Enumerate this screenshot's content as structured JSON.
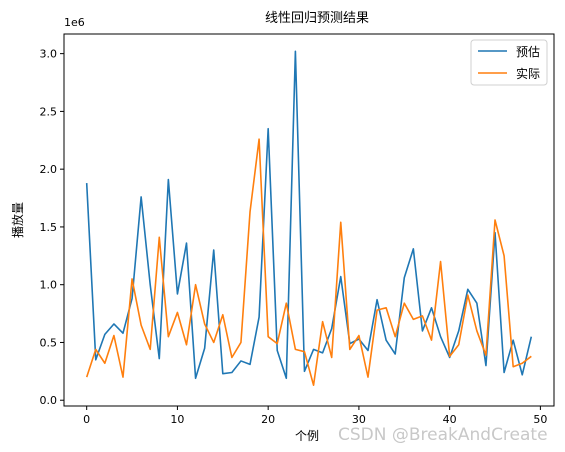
{
  "chart_data": {
    "type": "line",
    "title": "线性回归预测结果",
    "xlabel": "个例",
    "ylabel": "播放量",
    "y_offset_label": "1e6",
    "xlim": [
      -2.5,
      51.5
    ],
    "ylim": [
      -0.05,
      3.17
    ],
    "x_ticks": [
      0,
      10,
      20,
      30,
      40,
      50
    ],
    "y_ticks": [
      0.0,
      0.5,
      1.0,
      1.5,
      2.0,
      2.5,
      3.0
    ],
    "y_tick_labels": [
      "0.0",
      "0.5",
      "1.0",
      "1.5",
      "2.0",
      "2.5",
      "3.0"
    ],
    "legend_position": "top-right",
    "grid": false,
    "x": [
      0,
      1,
      2,
      3,
      4,
      5,
      6,
      7,
      8,
      9,
      10,
      11,
      12,
      13,
      14,
      15,
      16,
      17,
      18,
      19,
      20,
      21,
      22,
      23,
      24,
      25,
      26,
      27,
      28,
      29,
      30,
      31,
      32,
      33,
      34,
      35,
      36,
      37,
      38,
      39,
      40,
      41,
      42,
      43,
      44,
      45,
      46,
      47,
      48,
      49
    ],
    "series": [
      {
        "name": "预估",
        "color": "#1f77b4",
        "values": [
          1.88,
          0.35,
          0.57,
          0.66,
          0.58,
          0.88,
          1.76,
          1.0,
          0.36,
          1.91,
          0.92,
          1.36,
          0.19,
          0.45,
          1.3,
          0.23,
          0.24,
          0.34,
          0.31,
          0.72,
          2.35,
          0.43,
          0.19,
          3.02,
          0.25,
          0.44,
          0.41,
          0.62,
          1.07,
          0.49,
          0.53,
          0.43,
          0.87,
          0.52,
          0.4,
          1.06,
          1.31,
          0.6,
          0.8,
          0.55,
          0.37,
          0.6,
          0.96,
          0.84,
          0.3,
          1.45,
          0.24,
          0.52,
          0.22,
          0.55
        ]
      },
      {
        "name": "实际",
        "color": "#ff7f0e",
        "values": [
          0.2,
          0.44,
          0.32,
          0.56,
          0.2,
          1.05,
          0.65,
          0.44,
          1.41,
          0.55,
          0.76,
          0.48,
          1.0,
          0.66,
          0.5,
          0.74,
          0.37,
          0.5,
          1.63,
          2.26,
          0.55,
          0.49,
          0.84,
          0.44,
          0.42,
          0.13,
          0.68,
          0.37,
          1.54,
          0.44,
          0.56,
          0.2,
          0.78,
          0.8,
          0.55,
          0.84,
          0.7,
          0.73,
          0.52,
          1.2,
          0.38,
          0.48,
          0.91,
          0.6,
          0.39,
          1.56,
          1.25,
          0.29,
          0.32,
          0.38
        ]
      }
    ]
  },
  "watermark": "CSDN @BreakAndCreate"
}
